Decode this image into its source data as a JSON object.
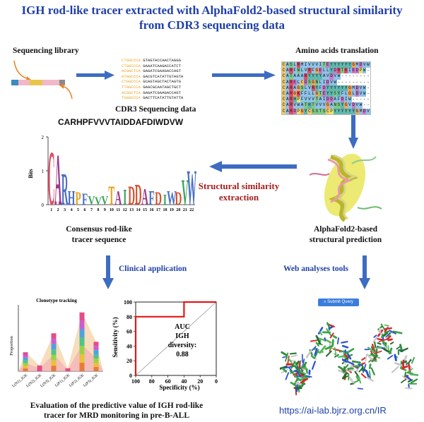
{
  "title": {
    "line1": "IGH rod-like tracer extracted with AlphaFold2-based structural similarity",
    "line2": "from CDR3 sequencing data"
  },
  "labels": {
    "sequencing_library": "Sequencing library",
    "cdr3_data": "CDR3 Sequencing data",
    "aa_translation": "Amino acids translation",
    "structural_similarity": "Structural similarity",
    "extraction": "extraction",
    "consensus_line1": "Consensus rod-like",
    "consensus_line2": "tracer sequence",
    "alphafold_line1": "AlphaFold2-based",
    "alphafold_line2": "structural prediction",
    "clinical_application": "Clinical application",
    "web_tools": "Web analyses tools",
    "evaluation_line1": "Evaluation of the predictive value of IGH rod-like",
    "evaluation_line2": "tracer for MRD monitoring in pre-B-ALL",
    "url": "https://ai-lab.bjrz.org.cn/IR",
    "submit_button": "Submit Query"
  },
  "dna_sequences": [
    {
      "prefix": "CTGGCCCA",
      "rest": "GTAGTACCAACTAGGG"
    },
    {
      "prefix": "CTGGCCCA",
      "rest": "GAAATCAAGACCATCT"
    },
    {
      "prefix": "ACGGCTCA",
      "rest": "GAGATCGAAGACCAGT"
    },
    {
      "prefix": "ATGGCCCA",
      "rest": "GACGTCATATTGTAGTA"
    },
    {
      "prefix": "CTGGCCCA",
      "rest": "GCAGTAGCTACTAGTG"
    },
    {
      "prefix": "TTGGCCCA",
      "rest": "GAGCGCAATAGCTGCT"
    },
    {
      "prefix": "ACGGCTCA",
      "rest": "GAGATCGAAGACCAGT"
    },
    {
      "prefix": "TGGGCCCA",
      "rest": "GACTTCATATTGTATTA"
    }
  ],
  "aa_alignment": [
    "CASLRMIVVVITEYYYYYYGMDVW",
    "CARFNLVRFGELLYDRTKIEDPW-",
    "CATAAARYYYYAVDVW--------",
    "CARELCDSGNLIDVW---------",
    "CARAGSLVRYFDYYYYYYGMDVW-",
    "CARGKFFLLGTEYYSYFLGLDVW-",
    "CARHPFVVVTAIDDAFDIW-----",
    "CARVWATHTVVVGANSYGVDVW--",
    "CARDPGYCSSTSCPYYYYYYGMDVW"
  ],
  "consensus": {
    "sequence": "CARHPFVVVTAIDDAFDIWDVW",
    "y_axis_label": "Bits",
    "y_ticks": [
      "0",
      "1",
      "2"
    ],
    "logo_letters": [
      {
        "pos": 1,
        "letter": "C",
        "height": 0.85,
        "color": "#e0506a"
      },
      {
        "pos": 2,
        "letter": "A",
        "height": 0.8,
        "color": "#9c3a8a"
      },
      {
        "pos": 3,
        "letter": "R",
        "height": 0.5,
        "color": "#4a6fc7"
      },
      {
        "pos": 4,
        "letter": "H",
        "height": 0.22,
        "color": "#4a6fc7"
      },
      {
        "pos": 5,
        "letter": "P",
        "height": 0.2,
        "color": "#e8a21c"
      },
      {
        "pos": 6,
        "letter": "F",
        "height": 0.18,
        "color": "#4a6fc7"
      },
      {
        "pos": 7,
        "letter": "V",
        "height": 0.14,
        "color": "#3aa35a"
      },
      {
        "pos": 8,
        "letter": "V",
        "height": 0.12,
        "color": "#3aa35a"
      },
      {
        "pos": 9,
        "letter": "V",
        "height": 0.14,
        "color": "#3aa35a"
      },
      {
        "pos": 10,
        "letter": "T",
        "height": 0.3,
        "color": "#e8a21c"
      },
      {
        "pos": 11,
        "letter": "A",
        "height": 0.22,
        "color": "#9c3a8a"
      },
      {
        "pos": 12,
        "letter": "I",
        "height": 0.24,
        "color": "#3aa35a"
      },
      {
        "pos": 13,
        "letter": "D",
        "height": 0.3,
        "color": "#d4502e"
      },
      {
        "pos": 14,
        "letter": "D",
        "height": 0.32,
        "color": "#d4502e"
      },
      {
        "pos": 15,
        "letter": "A",
        "height": 0.26,
        "color": "#9c3a8a"
      },
      {
        "pos": 16,
        "letter": "F",
        "height": 0.22,
        "color": "#4a6fc7"
      },
      {
        "pos": 17,
        "letter": "D",
        "height": 0.2,
        "color": "#d4502e"
      },
      {
        "pos": 18,
        "letter": "I",
        "height": 0.16,
        "color": "#3aa35a"
      },
      {
        "pos": 19,
        "letter": "W",
        "height": 0.22,
        "color": "#4a6fc7"
      },
      {
        "pos": 20,
        "letter": "D",
        "height": 0.2,
        "color": "#d4502e"
      },
      {
        "pos": 21,
        "letter": "V",
        "height": 0.4,
        "color": "#3aa35a"
      },
      {
        "pos": 22,
        "letter": "W",
        "height": 0.55,
        "color": "#4a6fc7"
      }
    ],
    "positions": [
      "1",
      "2",
      "3",
      "4",
      "5",
      "6",
      "7",
      "8",
      "9",
      "10",
      "11",
      "12",
      "13",
      "14",
      "15",
      "16",
      "17",
      "18",
      "19",
      "20",
      "21",
      "22"
    ]
  },
  "chart_data": [
    {
      "type": "bar",
      "title": "Clonotype tracking",
      "ylabel": "Proportion",
      "categories": [
        "L(N1)_IGK",
        "L(N2)_IGK",
        "L(N3)_IGK",
        "L(P1)_IGK",
        "L(P2)_IGK",
        "L(P3)_IGK"
      ],
      "values": [
        0.2,
        0.06,
        0.4,
        0.03,
        0.62,
        0.31
      ]
    },
    {
      "type": "line",
      "xlabel": "Specificity  (%)",
      "ylabel": "Sensitivity (%)",
      "x_ticks": [
        "100",
        "80",
        "60",
        "40",
        "20",
        "0"
      ],
      "y_ticks": [
        "0",
        "20",
        "40",
        "60",
        "80",
        "100"
      ],
      "annotation": [
        "AUC",
        "IGH",
        "diversity:",
        "0.88"
      ],
      "roc": {
        "specificity": [
          100,
          100,
          40,
          40,
          0
        ],
        "sensitivity": [
          0,
          80,
          80,
          100,
          100
        ]
      }
    }
  ],
  "colors": {
    "title": "#1f3fa8",
    "arrow": "#3d6cc2",
    "highlight_red": "#a51d1d",
    "roc_line": "#e01818"
  }
}
